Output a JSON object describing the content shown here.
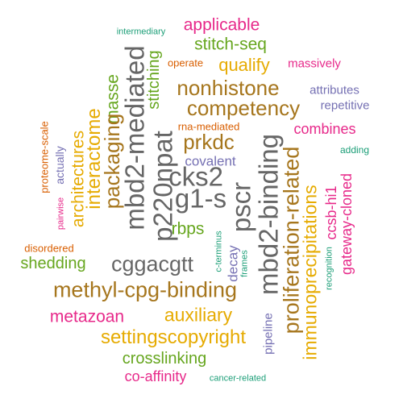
{
  "palette": {
    "teal": "#1b9e77",
    "orange": "#d95f02",
    "purple": "#7570b3",
    "magenta": "#e7298a",
    "green": "#66a61e",
    "gold": "#e6ab02",
    "brown": "#a6761d",
    "gray": "#666666"
  },
  "words": [
    {
      "text": "applicable",
      "color": "magenta"
    },
    {
      "text": "intermediary",
      "color": "teal"
    },
    {
      "text": "stitch-seq",
      "color": "green"
    },
    {
      "text": "operate",
      "color": "orange"
    },
    {
      "text": "qualify",
      "color": "gold"
    },
    {
      "text": "massively",
      "color": "magenta"
    },
    {
      "text": "stitching",
      "color": "green"
    },
    {
      "text": "mbd2-mediated",
      "color": "gray"
    },
    {
      "text": "masse",
      "color": "green"
    },
    {
      "text": "nonhistone",
      "color": "brown"
    },
    {
      "text": "attributes",
      "color": "purple"
    },
    {
      "text": "competency",
      "color": "brown"
    },
    {
      "text": "repetitive",
      "color": "purple"
    },
    {
      "text": "p220npat",
      "color": "gray"
    },
    {
      "text": "rna-mediated",
      "color": "orange"
    },
    {
      "text": "combines",
      "color": "magenta"
    },
    {
      "text": "prkdc",
      "color": "brown"
    },
    {
      "text": "packaging",
      "color": "brown"
    },
    {
      "text": "interactome",
      "color": "gold"
    },
    {
      "text": "architectures",
      "color": "gold"
    },
    {
      "text": "proteome-scale",
      "color": "orange"
    },
    {
      "text": "actually",
      "color": "purple"
    },
    {
      "text": "covalent",
      "color": "purple"
    },
    {
      "text": "adding",
      "color": "teal"
    },
    {
      "text": "cks2",
      "color": "gray"
    },
    {
      "text": "g1-s",
      "color": "gray"
    },
    {
      "text": "pscr",
      "color": "gray"
    },
    {
      "text": "mbd2-binding",
      "color": "gray"
    },
    {
      "text": "proliferation-related",
      "color": "brown"
    },
    {
      "text": "immunoprecipitations",
      "color": "gold"
    },
    {
      "text": "ccsb-hi1",
      "color": "magenta"
    },
    {
      "text": "gateway-cloned",
      "color": "magenta"
    },
    {
      "text": "recognition",
      "color": "teal"
    },
    {
      "text": "pairwise",
      "color": "magenta"
    },
    {
      "text": "rbps",
      "color": "green"
    },
    {
      "text": "disordered",
      "color": "orange"
    },
    {
      "text": "c-terminus",
      "color": "teal"
    },
    {
      "text": "decay",
      "color": "purple"
    },
    {
      "text": "frames",
      "color": "teal"
    },
    {
      "text": "shedding",
      "color": "green"
    },
    {
      "text": "cggacgtt",
      "color": "gray"
    },
    {
      "text": "pipeline",
      "color": "purple"
    },
    {
      "text": "methyl-cpg-binding",
      "color": "brown"
    },
    {
      "text": "metazoan",
      "color": "magenta"
    },
    {
      "text": "auxiliary",
      "color": "gold"
    },
    {
      "text": "settingscopyright",
      "color": "gold"
    },
    {
      "text": "crosslinking",
      "color": "green"
    },
    {
      "text": "co-affinity",
      "color": "magenta"
    },
    {
      "text": "cancer-related",
      "color": "teal"
    }
  ]
}
